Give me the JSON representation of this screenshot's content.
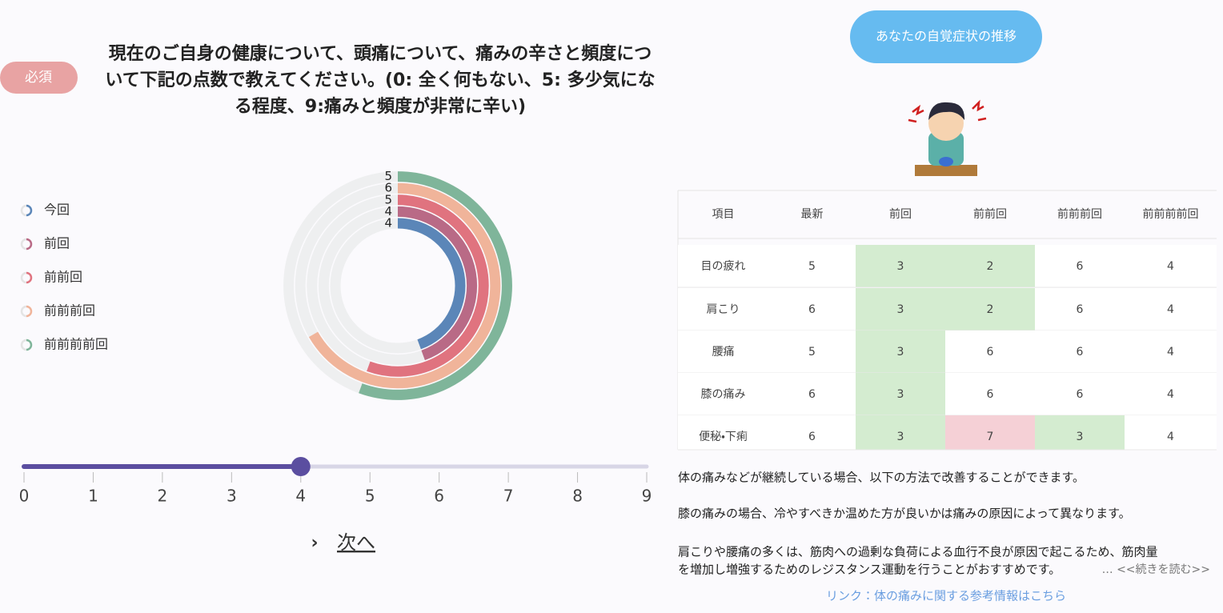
{
  "question": {
    "badge": "必須",
    "lines": [
      "現在のご自身の健康について、頭痛について、痛みの辛さと頻度につ",
      "いて下記の点数で教えてください。(0: 全く何もない、5: 多少気にな",
      "る程度、9:痛みと頻度が非常に辛い)"
    ]
  },
  "chart_data": {
    "type": "radial_bar",
    "rlim": [
      0,
      9
    ],
    "track_color": "#eeeff0",
    "series": [
      {
        "name": "今回",
        "color": "#5b86b8",
        "values": [
          4
        ]
      },
      {
        "name": "前回",
        "color": "#b96a86",
        "values": [
          4
        ]
      },
      {
        "name": "前前回",
        "color": "#e0737f",
        "values": [
          5
        ]
      },
      {
        "name": "前前前回",
        "color": "#f0b49a",
        "values": [
          6
        ]
      },
      {
        "name": "前前前前回",
        "color": "#7fb59a",
        "values": [
          5
        ]
      }
    ]
  },
  "slider": {
    "ticks": [
      0,
      1,
      2,
      3,
      4,
      5,
      6,
      7,
      8,
      9
    ],
    "value": 4,
    "color": "#5b4ea0"
  },
  "next": "次へ",
  "panel": {
    "button": "あなたの自覚症状の推移",
    "table": {
      "header": [
        "項目",
        "最新",
        "前回",
        "前前回",
        "前前前回",
        "前前前前回"
      ],
      "rows": [
        [
          "目の疲れ",
          5,
          3,
          2,
          6,
          4
        ],
        [
          "肩こり",
          6,
          3,
          2,
          6,
          4
        ],
        [
          "腰痛",
          5,
          3,
          6,
          6,
          4
        ],
        [
          "膝の痛み",
          6,
          3,
          6,
          6,
          4
        ],
        [
          "便秘・下痢",
          6,
          3,
          7,
          3,
          4
        ]
      ],
      "cell_colors": [
        [
          "#ffffff",
          "#ffffff",
          "#d4ecd0",
          "#d4ecd0",
          "#ffffff",
          "#ffffff"
        ],
        [
          "#ffffff",
          "#ffffff",
          "#d4ecd0",
          "#d4ecd0",
          "#ffffff",
          "#ffffff"
        ],
        [
          "#ffffff",
          "#ffffff",
          "#d4ecd0",
          "#ffffff",
          "#ffffff",
          "#ffffff"
        ],
        [
          "#ffffff",
          "#ffffff",
          "#d4ecd0",
          "#ffffff",
          "#ffffff",
          "#ffffff"
        ],
        [
          "#ffffff",
          "#ffffff",
          "#d4ecd0",
          "#f5d0d6",
          "#d4ecd0",
          "#ffffff"
        ]
      ]
    },
    "text_lines": [
      "体の痛みなどが継続している場合、以下の方法で改善することができます。",
      "膝の痛みの場合、冷やすべきか温めた方が良いかは痛みの原因によって異なります。",
      "肩こりや腰痛の多くは、筋肉への過剰な負荷による血行不良が原因で起こるため、筋肉量",
      "を増加し増強するためのレジスタンス運動を行うことがおすすめです。"
    ],
    "more": "… <<続きを読む>>",
    "link": "リンク：体の痛みに関する参考情報はこちら"
  }
}
